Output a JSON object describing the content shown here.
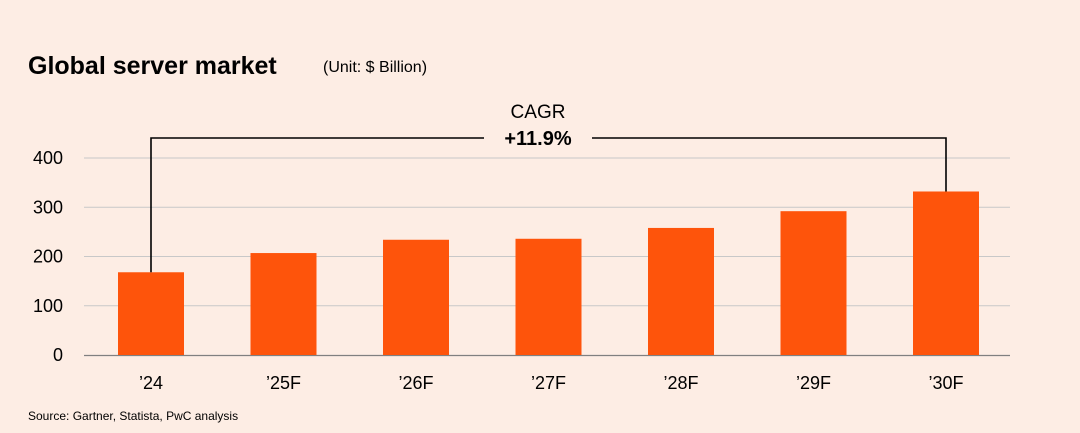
{
  "chart_data": {
    "type": "bar",
    "title": "Global server market",
    "unit": "(Unit: $ Billion)",
    "categories": [
      "’24",
      "’25F",
      "’26F",
      "’27F",
      "’28F",
      "’29F",
      "’30F"
    ],
    "values": [
      168,
      207,
      234,
      236,
      258,
      292,
      332
    ],
    "ylim": [
      0,
      400
    ],
    "yticks": [
      0,
      100,
      200,
      300,
      400
    ],
    "xlabel": "",
    "ylabel": "",
    "grid": true,
    "annotation": {
      "label": "CAGR",
      "value": "+11.9%",
      "from_category": "’24",
      "to_category": "’30F"
    },
    "source": "Source: Gartner, Statista, PwC analysis",
    "colors": {
      "bar": "#fe540b",
      "background": "#fdede4",
      "grid": "#c8c8c8",
      "axis": "#808080",
      "bracket": "#000000"
    }
  }
}
